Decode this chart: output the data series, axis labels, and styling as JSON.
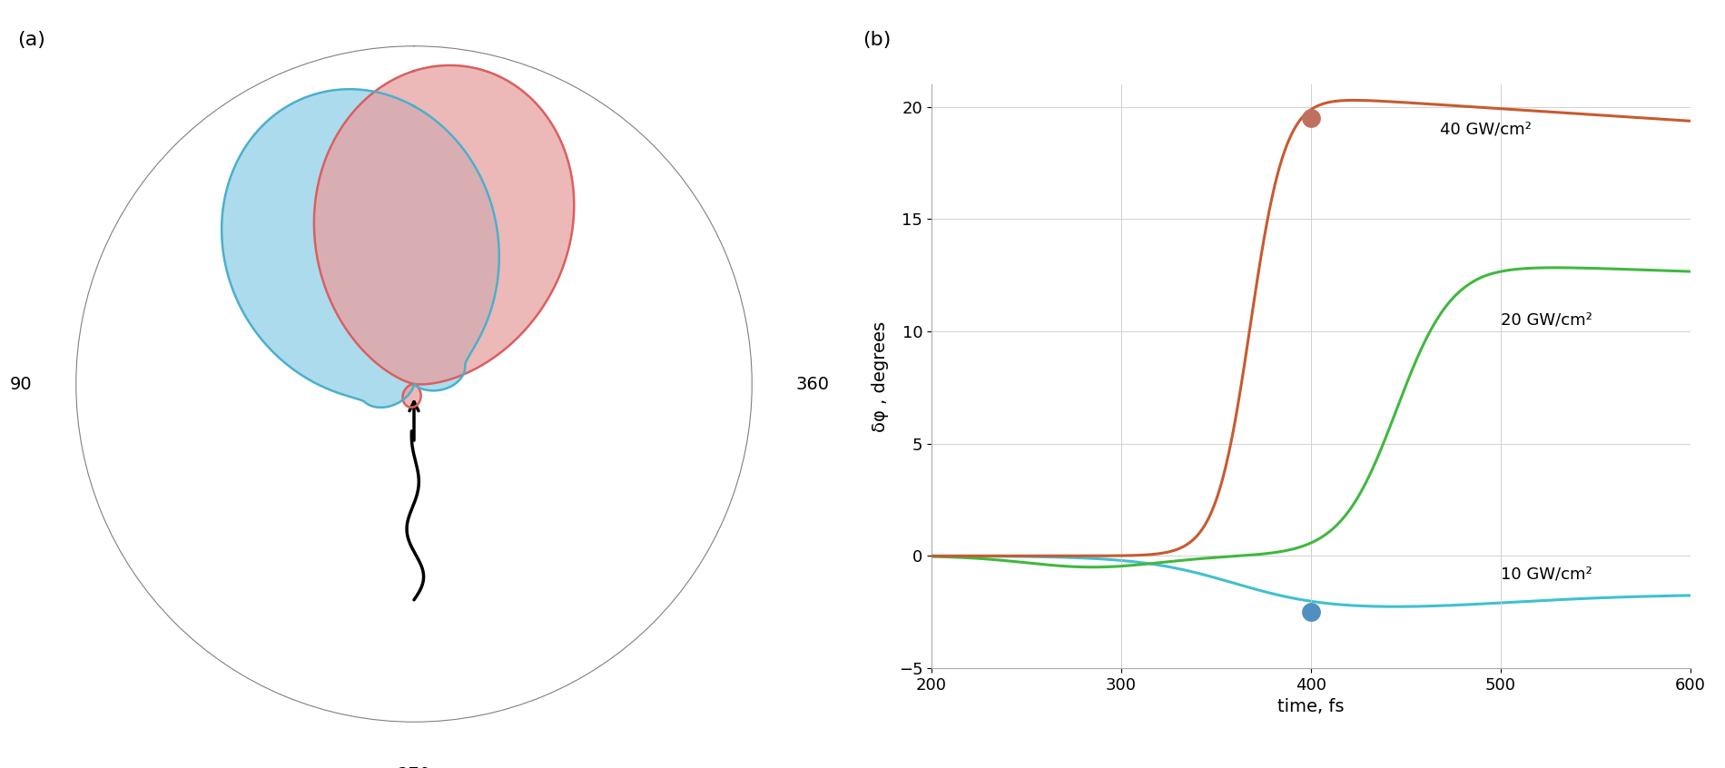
{
  "panel_a_label": "(a)",
  "panel_b_label": "(b)",
  "red_lobe_color": "#d96060",
  "red_lobe_fill": "#e8a0a0",
  "blue_lobe_color": "#4ab0cc",
  "blue_lobe_fill": "#90d0e8",
  "line_40_color": "#c85a30",
  "line_20_color": "#40b840",
  "line_10_color": "#40c0d0",
  "dot_40_color": "#c07060",
  "dot_10_color": "#5090c0",
  "label_40": "40 GW/cm²",
  "label_20": "20 GW/cm²",
  "label_10": "10 GW/cm²",
  "xlabel": "time, fs",
  "ylabel": "δφ , degrees",
  "xlim": [
    200,
    600
  ],
  "ylim": [
    -5,
    21
  ],
  "xticks": [
    200,
    300,
    400,
    500,
    600
  ],
  "yticks": [
    -5,
    0,
    5,
    10,
    15,
    20
  ],
  "dot_40_x": 400,
  "dot_40_y": 19.5,
  "dot_10_x": 400,
  "dot_10_y": -2.5
}
